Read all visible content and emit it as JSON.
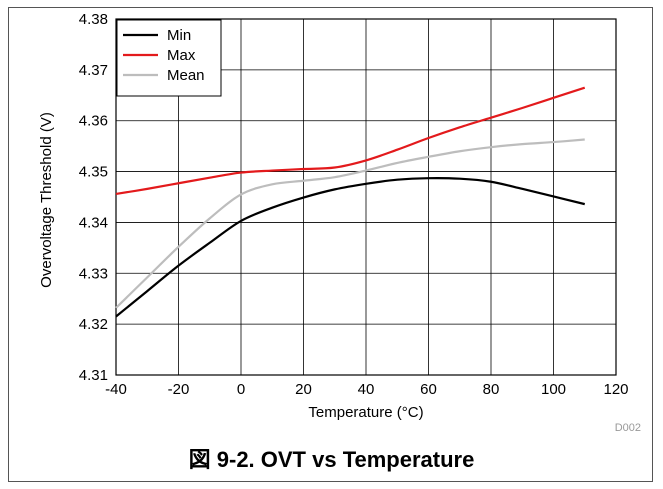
{
  "figure": {
    "caption": "図 9-2. OVT vs Temperature",
    "code": "D002"
  },
  "colors": {
    "min": "#000000",
    "max": "#e31a1c",
    "mean": "#bdbdbd"
  },
  "chart_data": {
    "type": "line",
    "xlabel": "Temperature (°C)",
    "ylabel": "Overvoltage Threshold (V)",
    "xlim": [
      -40,
      120
    ],
    "ylim": [
      4.31,
      4.38
    ],
    "xticks": [
      -40,
      -20,
      0,
      20,
      40,
      60,
      80,
      100,
      120
    ],
    "yticks": [
      4.31,
      4.32,
      4.33,
      4.34,
      4.35,
      4.36,
      4.37,
      4.38
    ],
    "ytick_labels": [
      "4.31",
      "4.32",
      "4.33",
      "4.34",
      "4.35",
      "4.36",
      "4.37",
      "4.38"
    ],
    "grid": true,
    "legend_position": "top-left",
    "series": [
      {
        "name": "Min",
        "color": "#000000",
        "x": [
          -40,
          -30,
          -20,
          -10,
          0,
          10,
          20,
          30,
          40,
          50,
          60,
          70,
          80,
          90,
          100,
          110
        ],
        "y": [
          4.3215,
          4.3265,
          4.3315,
          4.336,
          4.3403,
          4.3429,
          4.3449,
          4.3465,
          4.3476,
          4.3484,
          4.3487,
          4.3486,
          4.348,
          4.3466,
          4.3451,
          4.3436
        ]
      },
      {
        "name": "Max",
        "color": "#e31a1c",
        "x": [
          -40,
          -30,
          -20,
          -10,
          0,
          10,
          20,
          30,
          40,
          50,
          60,
          70,
          80,
          90,
          100,
          110
        ],
        "y": [
          4.3456,
          4.3466,
          4.3477,
          4.3488,
          4.3498,
          4.3502,
          4.3505,
          4.3508,
          4.3522,
          4.3543,
          4.3566,
          4.3587,
          4.3606,
          4.3625,
          4.3645,
          4.3665
        ]
      },
      {
        "name": "Mean",
        "color": "#bdbdbd",
        "x": [
          -40,
          -30,
          -20,
          -10,
          0,
          10,
          20,
          30,
          40,
          50,
          60,
          70,
          80,
          90,
          100,
          110
        ],
        "y": [
          4.3232,
          4.3292,
          4.3352,
          4.3408,
          4.3455,
          4.3475,
          4.3482,
          4.3489,
          4.3502,
          4.3517,
          4.3529,
          4.354,
          4.3548,
          4.3554,
          4.3558,
          4.3563
        ]
      }
    ]
  }
}
